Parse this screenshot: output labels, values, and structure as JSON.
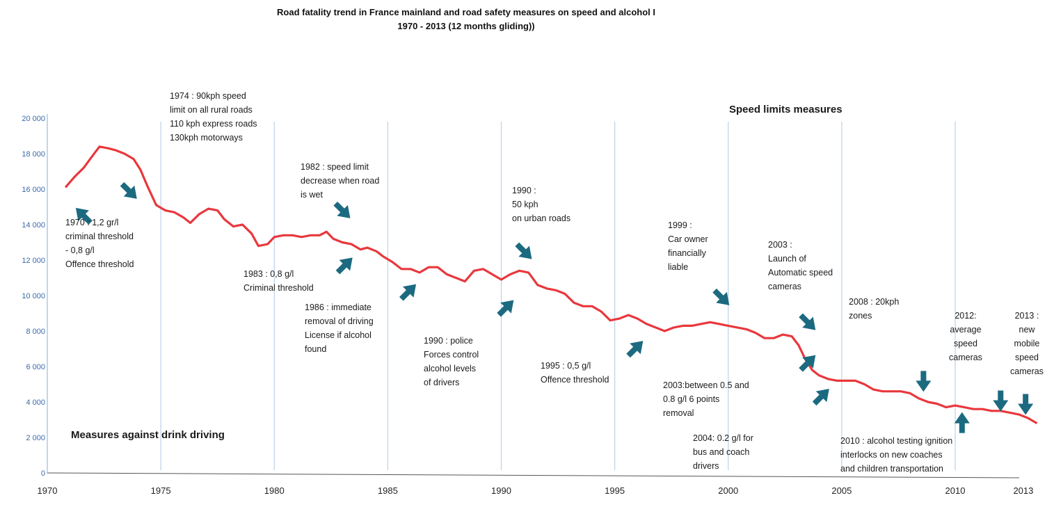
{
  "title_line1": "Road fatality trend in France mainland and road safety measures on speed and alcohol I",
  "title_line2": "1970 - 2013 (12 months gliding))",
  "section_speed": "Speed limits measures",
  "section_drink": "Measures against drink driving",
  "colors": {
    "line": "#e8383d",
    "arrow": "#1c6a80",
    "grid": "#b9d3ec",
    "ytick": "#3a6aa8"
  },
  "annotations": [
    {
      "id": "ann-1974",
      "lines": [
        "1974 : 90kph speed",
        "limit on all rural roads",
        "110 kph express roads",
        "130kph motorways"
      ]
    },
    {
      "id": "ann-1970",
      "lines": [
        "1970 : 1,2 gr/l",
        "criminal threshold",
        "- 0,8 g/l",
        "Offence threshold"
      ]
    },
    {
      "id": "ann-1982",
      "lines": [
        "1982 : speed limit",
        "decrease when road",
        "is wet"
      ]
    },
    {
      "id": "ann-1983",
      "lines": [
        "1983 : 0,8 g/l",
        "Criminal threshold"
      ]
    },
    {
      "id": "ann-1986",
      "lines": [
        "1986 : immediate",
        "removal of driving",
        "License if alcohol",
        "found"
      ]
    },
    {
      "id": "ann-1990s",
      "lines": [
        "1990 :",
        "50 kph",
        "on urban roads"
      ]
    },
    {
      "id": "ann-1990a",
      "lines": [
        "1990 : police",
        "Forces control",
        "alcohol levels",
        "of drivers"
      ]
    },
    {
      "id": "ann-1995",
      "lines": [
        "1995 : 0,5 g/l",
        "Offence threshold"
      ]
    },
    {
      "id": "ann-1999",
      "lines": [
        "1999 :",
        "Car owner",
        "financially",
        "liable"
      ]
    },
    {
      "id": "ann-2003s",
      "lines": [
        "2003 :",
        "Launch of",
        "Automatic speed",
        "cameras"
      ]
    },
    {
      "id": "ann-2003a",
      "lines": [
        "2003:between 0.5 and",
        "0.8 g/l  6 points",
        "removal"
      ]
    },
    {
      "id": "ann-2004",
      "lines": [
        "2004: 0.2 g/l  for",
        "bus and coach",
        "drivers"
      ]
    },
    {
      "id": "ann-2008",
      "lines": [
        "2008 : 20kph",
        "zones"
      ]
    },
    {
      "id": "ann-2010",
      "lines": [
        "2010 : alcohol testing ignition",
        "interlocks on new coaches",
        "and children transportation"
      ]
    },
    {
      "id": "ann-2012",
      "lines": [
        "2012:",
        "average",
        "speed",
        "cameras"
      ]
    },
    {
      "id": "ann-2013",
      "lines": [
        "2013 :",
        "new",
        "mobile",
        "speed",
        "cameras"
      ]
    }
  ],
  "chart_data": {
    "type": "line",
    "title": "Road fatality trend in France mainland and road safety measures on speed and alcohol I 1970 - 2013 (12 months gliding))",
    "xlabel": "",
    "ylabel": "",
    "xlim": [
      1970,
      2013.8
    ],
    "ylim": [
      0,
      20000
    ],
    "x_ticks": [
      1970,
      1975,
      1980,
      1985,
      1990,
      1995,
      2000,
      2005,
      2010,
      2013
    ],
    "x_tick_labels": [
      "1970",
      "1975",
      "1980",
      "1985",
      "1990",
      "1995",
      "2000",
      "2005",
      "2010",
      "2013"
    ],
    "y_ticks": [
      0,
      2000,
      4000,
      6000,
      8000,
      10000,
      12000,
      14000,
      16000,
      18000,
      20000
    ],
    "y_tick_labels": [
      "0",
      "2 000",
      "4 000",
      "6 000",
      "8 000",
      "10 000",
      "12 000",
      "14 000",
      "16 000",
      "18 000",
      "20 000"
    ],
    "grid": "vertical",
    "series": [
      {
        "x": [
          1970.8,
          1971.2,
          1971.6,
          1972.0,
          1972.3,
          1972.7,
          1973.0,
          1973.4,
          1973.8,
          1974.1,
          1974.4,
          1974.8,
          1975.2,
          1975.6,
          1976.0,
          1976.3,
          1976.7,
          1977.1,
          1977.5,
          1977.8,
          1978.2,
          1978.6,
          1979.0,
          1979.3,
          1979.7,
          1980.0,
          1980.4,
          1980.8,
          1981.2,
          1981.6,
          1982.0,
          1982.3,
          1982.6,
          1983.0,
          1983.4,
          1983.8,
          1984.1,
          1984.5,
          1984.8,
          1985.2,
          1985.6,
          1986.0,
          1986.4,
          1986.8,
          1987.2,
          1987.6,
          1988.0,
          1988.4,
          1988.8,
          1989.2,
          1989.6,
          1990.0,
          1990.4,
          1990.8,
          1991.2,
          1991.6,
          1992.0,
          1992.4,
          1992.8,
          1993.2,
          1993.6,
          1994.0,
          1994.4,
          1994.8,
          1995.2,
          1995.6,
          1996.0,
          1996.4,
          1996.8,
          1997.2,
          1997.6,
          1998.0,
          1998.4,
          1998.8,
          1999.2,
          1999.6,
          2000.0,
          2000.4,
          2000.8,
          2001.2,
          2001.6,
          2002.0,
          2002.4,
          2002.8,
          2003.1,
          2003.4,
          2003.7,
          2004.0,
          2004.4,
          2004.8,
          2005.2,
          2005.6,
          2006.0,
          2006.4,
          2006.8,
          2007.2,
          2007.6,
          2008.0,
          2008.4,
          2008.8,
          2009.2,
          2009.6,
          2010.0,
          2010.4,
          2010.8,
          2011.2,
          2011.6,
          2012.0,
          2012.4,
          2012.8,
          2013.2,
          2013.6
        ],
        "y": [
          16100,
          16700,
          17200,
          17900,
          18400,
          18300,
          18200,
          18000,
          17700,
          17100,
          16200,
          15100,
          14800,
          14700,
          14400,
          14100,
          14600,
          14900,
          14800,
          14300,
          13900,
          14000,
          13500,
          12800,
          12900,
          13300,
          13400,
          13400,
          13300,
          13400,
          13400,
          13600,
          13200,
          13000,
          12900,
          12600,
          12700,
          12500,
          12200,
          11900,
          11500,
          11500,
          11300,
          11600,
          11600,
          11200,
          11000,
          10800,
          11400,
          11500,
          11200,
          10900,
          11200,
          11400,
          11300,
          10600,
          10400,
          10300,
          10100,
          9600,
          9400,
          9400,
          9100,
          8600,
          8700,
          8900,
          8700,
          8400,
          8200,
          8000,
          8200,
          8300,
          8300,
          8400,
          8500,
          8400,
          8300,
          8200,
          8100,
          7900,
          7600,
          7600,
          7800,
          7700,
          7200,
          6400,
          5800,
          5500,
          5300,
          5200,
          5200,
          5200,
          5000,
          4700,
          4600,
          4600,
          4600,
          4500,
          4200,
          4000,
          3900,
          3700,
          3800,
          3700,
          3600,
          3600,
          3500,
          3500,
          3400,
          3300,
          3100,
          2800
        ]
      }
    ]
  }
}
